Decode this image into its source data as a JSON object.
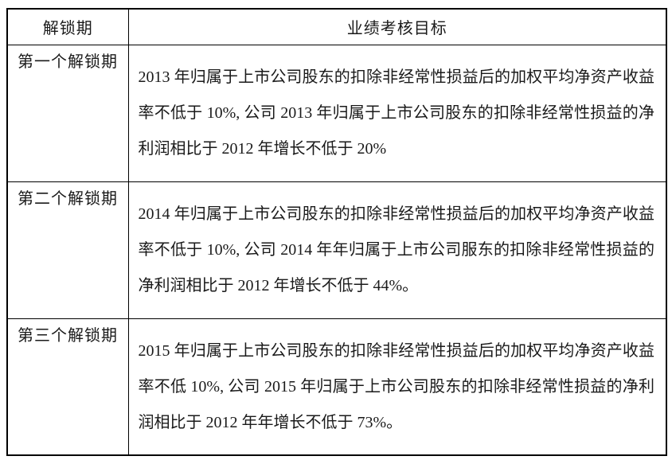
{
  "colors": {
    "border": "#000000",
    "text": "#1a1a1a",
    "background": "#ffffff"
  },
  "table": {
    "headers": [
      "解锁期",
      "业绩考核目标"
    ],
    "rows": [
      {
        "period": "第一个解锁期",
        "target": "2013 年归属于上市公司股东的扣除非经常性损益后的加权平均净资产收益率不低于 10%, 公司 2013 年归属于上市公司股东的扣除非经常性损益的净利润相比于 2012 年增长不低于 20%"
      },
      {
        "period": "第二个解锁期",
        "target": "2014 年归属于上市公司股东的扣除非经常性损益后的加权平均净资产收益率不低于 10%, 公司 2014 年年归属于上市公司服东的扣除非经常性损益的净利润相比于 2012 年增长不低于 44%。"
      },
      {
        "period": "第三个解锁期",
        "target": "2015 年归属于上市公司股东的扣除非经常性损益后的加权平均净资产收益率不低 10%, 公司 2015 年归属于上市公司股东的扣除非经常性损益的净利润相比于 2012 年年增长不低于 73%。"
      }
    ]
  }
}
